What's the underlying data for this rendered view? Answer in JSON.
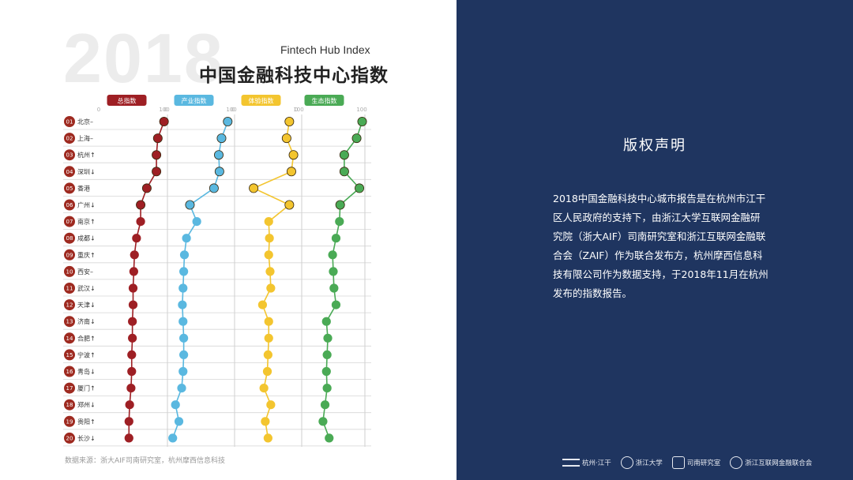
{
  "header": {
    "year": "2018",
    "subtitle_en": "Fintech Hub Index",
    "title_cn": "中国金融科技中心指数"
  },
  "source_note": "数据来源：浙大AIF司南研究室，杭州摩西信息科技",
  "right_panel": {
    "heading": "版权声明",
    "paragraph_lines": [
      "2018中国金融科技中心城市报告是在杭州市江干",
      "区人民政府的支持下，由浙江大学互联网金融研",
      "究院（浙大AIF）司南研究室和浙江互联网金融联",
      "合会（ZAIF）作为联合发布方，杭州摩西信息科",
      "技有限公司作为数据支持，于2018年11月在杭州",
      "发布的指数报告。"
    ],
    "logos": [
      {
        "name": "杭州·江干",
        "icon": "wave-icon"
      },
      {
        "name": "浙江大学",
        "icon": "seal-icon"
      },
      {
        "name": "司南研究室",
        "icon": "s-icon"
      },
      {
        "name": "浙江互联网金融联合会",
        "icon": "circle-icon"
      }
    ]
  },
  "chart_data": {
    "type": "line",
    "orientation": "horizontal-dot-plot",
    "axis_ticks": [
      "0",
      "100"
    ],
    "xlim": [
      0,
      100
    ],
    "series": [
      {
        "name": "总指数",
        "color": "#9e1f24",
        "values": [
          95,
          86,
          84,
          84,
          70,
          61,
          61,
          55,
          52,
          51,
          50,
          50,
          49,
          49,
          48,
          48,
          47,
          45,
          44,
          44
        ]
      },
      {
        "name": "产业指数",
        "color": "#5ab8e0",
        "values": [
          90,
          81,
          77,
          78,
          70,
          35,
          45,
          30,
          27,
          26,
          25,
          24,
          25,
          26,
          26,
          25,
          23,
          14,
          19,
          10
        ]
      },
      {
        "name": "体验指数",
        "color": "#f3c52f",
        "values": [
          82,
          78,
          88,
          85,
          30,
          82,
          52,
          53,
          52,
          54,
          55,
          43,
          52,
          52,
          51,
          50,
          45,
          55,
          47,
          51
        ]
      },
      {
        "name": "生态指数",
        "color": "#4aaa55",
        "values": [
          96,
          88,
          70,
          70,
          92,
          64,
          63,
          58,
          53,
          54,
          55,
          58,
          44,
          46,
          45,
          44,
          45,
          42,
          39,
          48
        ]
      }
    ],
    "cities": [
      {
        "rank": "01",
        "name": "北京",
        "trend": "–"
      },
      {
        "rank": "02",
        "name": "上海",
        "trend": "–"
      },
      {
        "rank": "03",
        "name": "杭州",
        "trend": "↑"
      },
      {
        "rank": "04",
        "name": "深圳",
        "trend": "↓"
      },
      {
        "rank": "05",
        "name": "香港",
        "trend": ""
      },
      {
        "rank": "06",
        "name": "广州",
        "trend": "↓"
      },
      {
        "rank": "07",
        "name": "南京",
        "trend": "↑"
      },
      {
        "rank": "08",
        "name": "成都",
        "trend": "↓"
      },
      {
        "rank": "09",
        "name": "重庆",
        "trend": "↑"
      },
      {
        "rank": "10",
        "name": "西安",
        "trend": "–"
      },
      {
        "rank": "11",
        "name": "武汉",
        "trend": "↓"
      },
      {
        "rank": "12",
        "name": "天津",
        "trend": "↓"
      },
      {
        "rank": "13",
        "name": "济南",
        "trend": "↓"
      },
      {
        "rank": "14",
        "name": "合肥",
        "trend": "↑"
      },
      {
        "rank": "15",
        "name": "宁波",
        "trend": "↑"
      },
      {
        "rank": "16",
        "name": "青岛",
        "trend": "↓"
      },
      {
        "rank": "17",
        "name": "厦门",
        "trend": "↑"
      },
      {
        "rank": "18",
        "name": "郑州",
        "trend": "↓"
      },
      {
        "rank": "19",
        "name": "贵阳",
        "trend": "↑"
      },
      {
        "rank": "20",
        "name": "长沙",
        "trend": "↓"
      }
    ],
    "grid": true,
    "legend": "top"
  }
}
